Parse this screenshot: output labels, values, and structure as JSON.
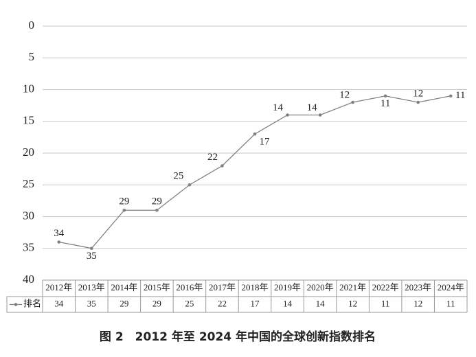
{
  "chart_data": {
    "type": "line",
    "title": "图 2　2012 年至 2024 年中国的全球创新指数排名",
    "categories": [
      "2012年",
      "2013年",
      "2014年",
      "2015年",
      "2016年",
      "2017年",
      "2018年",
      "2019年",
      "2020年",
      "2021年",
      "2022年",
      "2023年",
      "2024年"
    ],
    "series": [
      {
        "name": "排名",
        "color": "#808080",
        "values": [
          34,
          35,
          29,
          29,
          25,
          22,
          17,
          14,
          14,
          12,
          11,
          12,
          11
        ]
      }
    ],
    "ylim": [
      0,
      40
    ],
    "yticks": [
      0,
      5,
      10,
      15,
      20,
      25,
      30,
      35,
      40
    ],
    "y_inverted": true,
    "grid": true,
    "data_table": true
  }
}
